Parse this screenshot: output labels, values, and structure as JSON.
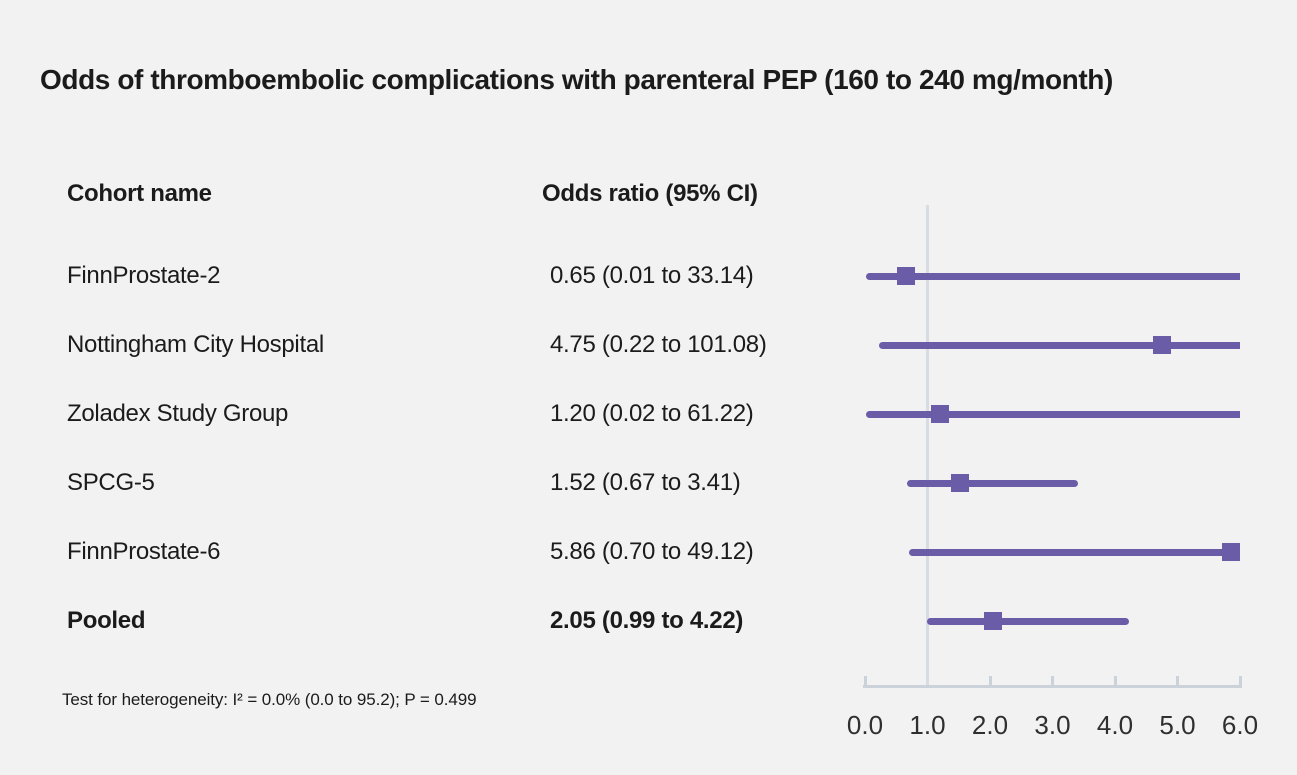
{
  "title": "Odds of thromboembolic complications with parenteral PEP (160 to 240 mg/month)",
  "columns": {
    "cohort": "Cohort name",
    "odds_ratio": "Odds ratio (95% CI)"
  },
  "footnote": "Test for heterogeneity: I² = 0.0% (0.0 to 95.2); P = 0.499",
  "colors": {
    "background": "#f2f2f2",
    "text": "#1b1b1b",
    "estimate_purple": "#6a5ca7",
    "reference_line": "#d7dce3",
    "axis": "#ccd2da"
  },
  "chart_data": {
    "type": "scatter",
    "subtype": "forest-plot",
    "title": "Odds of thromboembolic complications with parenteral PEP (160 to 240 mg/month)",
    "xlabel": "Odds ratio",
    "ylabel": "",
    "xlim": [
      0.0,
      6.0
    ],
    "x_ticks": [
      "0.0",
      "1.0",
      "2.0",
      "3.0",
      "4.0",
      "5.0",
      "6.0"
    ],
    "x_tick_values": [
      0,
      1,
      2,
      3,
      4,
      5,
      6
    ],
    "reference_line_x": 1.0,
    "grid": false,
    "legend_position": "none",
    "marker": "square",
    "rows": [
      {
        "label": "FinnProstate-2",
        "or_text": "0.65 (0.01 to 33.14)",
        "or": 0.65,
        "lo": 0.01,
        "hi": 33.14,
        "bold": false
      },
      {
        "label": "Nottingham City Hospital",
        "or_text": "4.75 (0.22 to 101.08)",
        "or": 4.75,
        "lo": 0.22,
        "hi": 101.08,
        "bold": false
      },
      {
        "label": "Zoladex Study Group",
        "or_text": "1.20 (0.02 to 61.22)",
        "or": 1.2,
        "lo": 0.02,
        "hi": 61.22,
        "bold": false
      },
      {
        "label": "SPCG-5",
        "or_text": "1.52 (0.67 to 3.41)",
        "or": 1.52,
        "lo": 0.67,
        "hi": 3.41,
        "bold": false
      },
      {
        "label": "FinnProstate-6",
        "or_text": "5.86 (0.70 to 49.12)",
        "or": 5.86,
        "lo": 0.7,
        "hi": 49.12,
        "bold": false
      },
      {
        "label": "Pooled",
        "or_text": "2.05 (0.99 to 4.22)",
        "or": 2.05,
        "lo": 0.99,
        "hi": 4.22,
        "bold": true
      }
    ]
  }
}
